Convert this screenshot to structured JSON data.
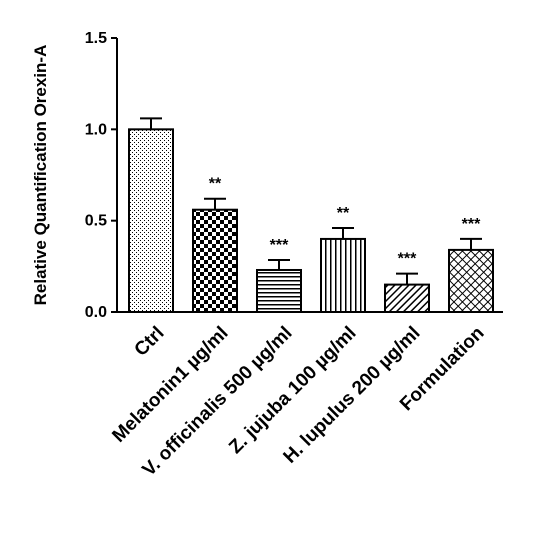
{
  "chart_data": {
    "type": "bar",
    "title": "",
    "xlabel": "",
    "ylabel": "Relative Quantification Orexin-A",
    "ylim": [
      0,
      1.5
    ],
    "yticks": [
      "0.0",
      "0.5",
      "1.0",
      "1.5"
    ],
    "grid": false,
    "legend": "none",
    "categories": [
      "Ctrl",
      "Melatonin1 µg/ml",
      "V. officinalis 500 µg/ml",
      "Z. jujuba 100 µg/ml",
      "H. lupulus 200 µg/ml",
      "Formulation"
    ],
    "values": [
      1.0,
      0.56,
      0.23,
      0.4,
      0.15,
      0.34
    ],
    "errors": [
      0.06,
      0.06,
      0.055,
      0.06,
      0.06,
      0.06
    ],
    "significance": [
      "",
      "**",
      "***",
      "**",
      "***",
      "***"
    ],
    "patterns": [
      "dots",
      "checker",
      "hlines",
      "vlines",
      "diagonal",
      "crosshatch"
    ]
  }
}
